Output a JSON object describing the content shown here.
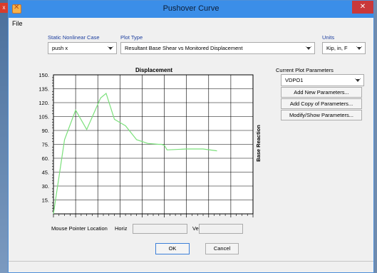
{
  "window": {
    "title": "Pushover Curve",
    "menu_file": "File"
  },
  "background": {
    "left_tab_glyph": "x"
  },
  "case_group": {
    "label": "Static Nonlinear Case",
    "value": "push x"
  },
  "plot_type_group": {
    "label": "Plot Type",
    "value": "Resultant Base Shear vs Monitored Displacement"
  },
  "units_group": {
    "label": "Units",
    "value": "Kip, in, F"
  },
  "plot_params": {
    "label": "Current Plot Parameters",
    "value": "VDPO1",
    "add_new": "Add New Parameters...",
    "add_copy": "Add Copy of Parameters...",
    "modify_show": "Modify/Show Parameters..."
  },
  "pointer": {
    "label": "Mouse Pointer Location",
    "horiz_label": "Horiz",
    "vert_label": "Vert",
    "horiz_value": "",
    "vert_value": ""
  },
  "buttons": {
    "ok": "OK",
    "cancel": "Cancel"
  },
  "colors": {
    "titlebar": "#3b8ee8",
    "curve": "#7be07b",
    "group_label": "#1b3d9e"
  },
  "chart_data": {
    "type": "line",
    "title": "Displacement",
    "xlabel": "",
    "ylabel": "Base Reaction",
    "xlim": [
      0,
      3.6
    ],
    "ylim": [
      0,
      150
    ],
    "x_ticks": [
      "0.00",
      "0.40",
      "0.80",
      "1.20",
      "1.60",
      "2.00",
      "2.40",
      "2.80",
      "3.20",
      "3.60"
    ],
    "y_ticks": [
      "15.",
      "30.",
      "45.",
      "60.",
      "75.",
      "90.",
      "105.",
      "120.",
      "135.",
      "150."
    ],
    "grid": true,
    "series": [
      {
        "x": [
          0.0,
          0.2,
          0.4,
          0.6,
          0.85,
          0.95,
          1.1,
          1.3,
          1.5,
          1.7,
          1.9,
          1.95,
          2.0,
          2.05,
          2.4,
          2.7,
          2.95
        ],
        "y": [
          0,
          80,
          112,
          91,
          125,
          130,
          102,
          95,
          80,
          76,
          75,
          75,
          74,
          69,
          70,
          70,
          68
        ]
      }
    ]
  }
}
